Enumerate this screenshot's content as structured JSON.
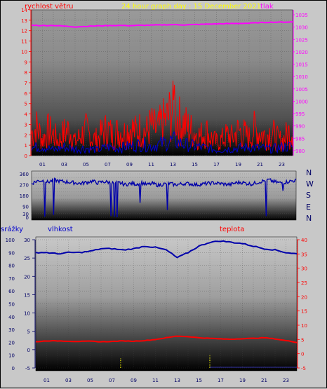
{
  "header": {
    "left_label": "rychlost větru",
    "center_title": "24 hour graph day : 15 December 2021",
    "right_label": "tlak"
  },
  "dir_letters": [
    "N",
    "W",
    "S",
    "E",
    "N"
  ],
  "bottom_header": {
    "left_label": "srážky",
    "center_label": "vlhkost",
    "right_label": "teplota"
  },
  "colors": {
    "wind_speed": "#ff0000",
    "wind_gust": "#0000cc",
    "pressure": "#ff00ff",
    "direction": "#0000aa",
    "humidity": "#0000aa",
    "temperature": "#ff0000",
    "rain": "#ffff00",
    "title": "#ffff00",
    "label_red": "#ff0000",
    "label_blue": "#0000cc",
    "label_magenta": "#ff00ff"
  },
  "chart_data": [
    {
      "type": "line",
      "name": "wind-pressure",
      "xticks": [
        "01",
        "03",
        "05",
        "07",
        "09",
        "11",
        "13",
        "15",
        "17",
        "19",
        "21",
        "23"
      ],
      "xlim": [
        0,
        24
      ],
      "ylabel": "rychlost větru",
      "ylabel_right": "tlak",
      "yticks_left": [
        "0",
        "1",
        "2",
        "3",
        "4",
        "5",
        "6",
        "7",
        "8",
        "9",
        "10",
        "11",
        "12",
        "13",
        "14"
      ],
      "ylim_left": [
        0,
        14
      ],
      "yticks_right": [
        "980",
        "985",
        "990",
        "995",
        "1000",
        "1005",
        "1010",
        "1015",
        "1020",
        "1025",
        "1030",
        "1035"
      ],
      "ylim_right": [
        978,
        1037
      ],
      "series": [
        {
          "name": "rychlost větru",
          "x": [
            0,
            0.5,
            1,
            1.5,
            2,
            2.5,
            3,
            3.5,
            4,
            4.5,
            5,
            5.5,
            6,
            6.5,
            7,
            7.5,
            8,
            8.5,
            9,
            9.5,
            10,
            10.5,
            11,
            11.5,
            12,
            12.5,
            13,
            13.5,
            14,
            14.5,
            15,
            15.5,
            16,
            16.5,
            17,
            17.5,
            18,
            18.5,
            19,
            19.5,
            20,
            20.5,
            21,
            21.5,
            22,
            22.5,
            23,
            23.5,
            24
          ],
          "y": [
            2.5,
            3.2,
            1.8,
            2.8,
            2.4,
            1.6,
            2.6,
            2.9,
            1.5,
            2.2,
            2.8,
            2.0,
            1.8,
            2.6,
            3.0,
            2.2,
            2.8,
            2.5,
            3.2,
            2.7,
            3.0,
            2.6,
            3.4,
            2.8,
            3.6,
            4.2,
            5.2,
            4.0,
            3.6,
            3.0,
            2.6,
            2.2,
            2.8,
            2.0,
            1.5,
            1.8,
            2.3,
            2.0,
            2.8,
            2.5,
            2.0,
            3.0,
            2.6,
            2.2,
            2.8,
            2.0,
            1.6,
            2.4,
            3.0
          ]
        },
        {
          "name": "wind gust",
          "x": [
            0,
            1,
            2,
            3,
            4,
            5,
            6,
            7,
            8,
            9,
            10,
            11,
            12,
            13,
            14,
            15,
            16,
            17,
            18,
            19,
            20,
            21,
            22,
            23,
            24
          ],
          "y": [
            0.8,
            1.0,
            0.6,
            0.9,
            0.7,
            0.8,
            0.6,
            0.9,
            0.8,
            1.0,
            1.2,
            1.0,
            1.3,
            1.6,
            1.2,
            1.0,
            0.8,
            0.6,
            0.7,
            0.8,
            0.9,
            0.8,
            0.7,
            0.9,
            1.0
          ]
        },
        {
          "name": "tlak",
          "x": [
            0,
            1,
            2,
            3,
            4,
            5,
            6,
            7,
            8,
            9,
            10,
            11,
            12,
            13,
            14,
            15,
            16,
            17,
            18,
            19,
            20,
            21,
            22,
            23,
            24
          ],
          "y": [
            1030.8,
            1030.6,
            1030.7,
            1030.4,
            1030.1,
            1030.3,
            1030.5,
            1030.6,
            1030.7,
            1030.6,
            1030.7,
            1030.8,
            1030.9,
            1031.0,
            1030.9,
            1031.0,
            1031.2,
            1031.3,
            1031.4,
            1031.5,
            1031.6,
            1031.8,
            1032.0,
            1032.0,
            1032.1
          ]
        }
      ]
    },
    {
      "type": "line",
      "name": "wind-direction",
      "xlim": [
        0,
        24
      ],
      "yticks": [
        "0",
        "30",
        "60",
        "90",
        "120",
        "150",
        "180",
        "210",
        "240",
        "270",
        "300",
        "330",
        "360"
      ],
      "yticks_shown": [
        "0",
        "30",
        "90",
        "180",
        "270",
        "360"
      ],
      "ylim": [
        0,
        360
      ],
      "series": [
        {
          "name": "direction",
          "x": [
            0,
            0.5,
            1,
            1.5,
            2,
            2.5,
            3,
            3.5,
            4,
            4.5,
            5,
            5.5,
            6,
            6.5,
            7,
            7.5,
            8,
            8.5,
            9,
            9.5,
            10,
            10.5,
            11,
            11.5,
            12,
            12.5,
            13,
            13.5,
            14,
            14.5,
            15,
            15.5,
            16,
            16.5,
            17,
            17.5,
            18,
            18.5,
            19,
            19.5,
            20,
            20.5,
            21,
            21.5,
            22,
            22.5,
            23,
            23.5,
            24
          ],
          "y": [
            280,
            300,
            305,
            290,
            310,
            300,
            295,
            290,
            285,
            280,
            290,
            300,
            285,
            295,
            290,
            280,
            285,
            270,
            280,
            275,
            285,
            270,
            280,
            265,
            275,
            280,
            270,
            275,
            280,
            275,
            270,
            275,
            280,
            285,
            280,
            275,
            270,
            285,
            290,
            280,
            275,
            290,
            300,
            310,
            295,
            285,
            290,
            300,
            305
          ]
        }
      ],
      "dips": [
        [
          1.2,
          5
        ],
        [
          2.0,
          20
        ],
        [
          7.2,
          10
        ],
        [
          7.5,
          5
        ],
        [
          7.8,
          0
        ],
        [
          9.8,
          120
        ],
        [
          12.3,
          60
        ],
        [
          21.3,
          10
        ],
        [
          22.8,
          220
        ]
      ]
    },
    {
      "type": "line",
      "name": "humidity-temperature",
      "xticks": [
        "01",
        "03",
        "05",
        "07",
        "09",
        "11",
        "13",
        "15",
        "17",
        "19",
        "21",
        "23"
      ],
      "xlim": [
        0,
        24
      ],
      "ylabel": "srážky",
      "yticks_rain": [
        "0",
        "10",
        "20",
        "30",
        "40",
        "50",
        "60",
        "70",
        "80",
        "90",
        "100"
      ],
      "ylim_rain": [
        0,
        100
      ],
      "yticks_humidity": [
        "-5",
        "0",
        "5",
        "10",
        "15",
        "20",
        "25",
        "30"
      ],
      "ylim_humidity": [
        -5,
        30
      ],
      "yticks_temp": [
        "-5",
        "0",
        "5",
        "10",
        "15",
        "20",
        "25",
        "30",
        "35",
        "40"
      ],
      "ylim_temp": [
        -5,
        40
      ],
      "series": [
        {
          "name": "vlhkost",
          "x": [
            0,
            1,
            2,
            3,
            4,
            5,
            6,
            7,
            8,
            9,
            10,
            11,
            12,
            13,
            14,
            15,
            16,
            17,
            18,
            19,
            20,
            21,
            22,
            23,
            24
          ],
          "y": [
            90,
            90,
            89,
            90,
            90,
            91,
            93,
            93,
            92,
            93,
            95,
            94,
            92,
            86,
            90,
            95,
            98,
            99,
            98,
            97,
            95,
            93,
            92,
            90,
            89
          ]
        },
        {
          "name": "teplota",
          "x": [
            0,
            1,
            2,
            3,
            4,
            5,
            6,
            7,
            8,
            9,
            10,
            11,
            12,
            13,
            14,
            15,
            16,
            17,
            18,
            19,
            20,
            21,
            22,
            23,
            24
          ],
          "y": [
            4.2,
            4.5,
            4.5,
            4.4,
            4.3,
            4.4,
            4.2,
            4.3,
            4.5,
            4.4,
            4.6,
            5.0,
            5.6,
            6.2,
            6.0,
            5.6,
            5.4,
            5.2,
            5.1,
            5.3,
            5.4,
            5.6,
            5.2,
            4.6,
            4.0
          ]
        },
        {
          "name": "srážky",
          "x": [
            7.8,
            16.0
          ],
          "y": [
            8,
            10
          ]
        }
      ]
    }
  ]
}
